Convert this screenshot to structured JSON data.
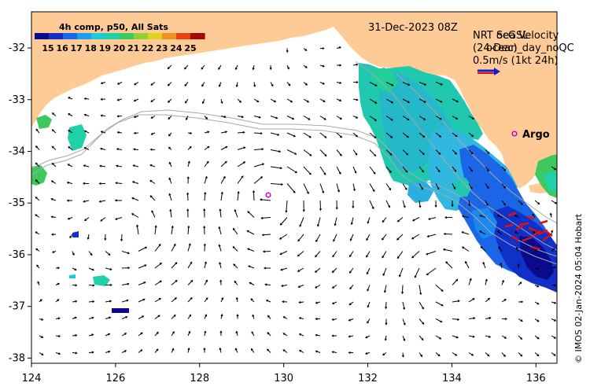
{
  "title_date": "31-Dec-2023 08Z",
  "colorbar": {
    "title": "4h comp, p50, All Sats",
    "tick_labels": [
      "15",
      "16",
      "17",
      "18",
      "19",
      "20",
      "21",
      "22",
      "23",
      "24",
      "25"
    ],
    "colors": [
      "#0a0a8c",
      "#1030c8",
      "#1a66e6",
      "#1aa0ee",
      "#20c8d8",
      "#20d0a8",
      "#40c860",
      "#90d030",
      "#e0d020",
      "#f09020",
      "#e84010",
      "#a00a0a"
    ]
  },
  "velocity_legend": {
    "line1": "NRT ocGSL",
    "line1_overlap": "Sea Velocity",
    "line2": "(24-Dec\u0010)",
    "line2_overlap": "ocean_day_noQC",
    "line3": "0.5m/s (1kt 24h)",
    "arrow_colors": [
      "#1a1acc",
      "#dd1111"
    ]
  },
  "argo": {
    "label": "Argo",
    "color": "#cc00cc"
  },
  "axes": {
    "x_ticks": [
      "124",
      "126",
      "128",
      "130",
      "132",
      "134",
      "136"
    ],
    "x_values": [
      124,
      126,
      128,
      130,
      132,
      134,
      136
    ],
    "y_ticks": [
      "-32",
      "-33",
      "-34",
      "-35",
      "-36",
      "-37",
      "-38"
    ],
    "y_values": [
      -32,
      -33,
      -34,
      -35,
      -36,
      -37,
      -38
    ],
    "xlim": [
      124,
      136.5
    ],
    "ylim": [
      -38.1,
      -31.3
    ]
  },
  "colors": {
    "land": "#fecb96",
    "ocean": "#ffffff",
    "bathy": "#a8a8a8"
  },
  "credit": "© IMOS 02-Jan-2024 05:04 Hobart"
}
